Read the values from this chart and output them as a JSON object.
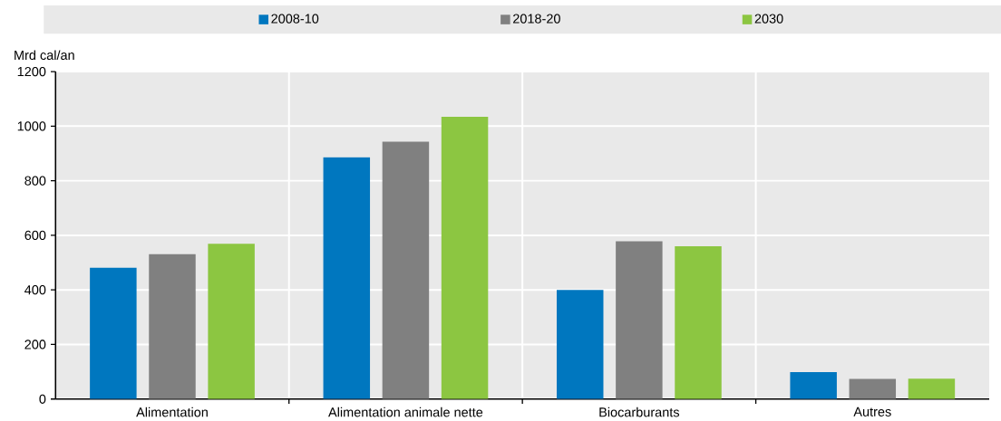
{
  "chart_data": {
    "type": "bar",
    "ylabel": "Mrd cal/an",
    "categories": [
      "Alimentation",
      "Alimentation animale nette",
      "Biocarburants",
      "Autres"
    ],
    "series": [
      {
        "name": "2008-10",
        "color": "#0077bf",
        "values": [
          481,
          886,
          400,
          99
        ]
      },
      {
        "name": "2018-20",
        "color": "#808080",
        "values": [
          531,
          943,
          578,
          74
        ]
      },
      {
        "name": "2030",
        "color": "#8cc641",
        "values": [
          569,
          1034,
          560,
          75
        ]
      }
    ],
    "ylim": [
      0,
      1200
    ],
    "yticks": [
      0,
      200,
      400,
      600,
      800,
      1000,
      1200
    ],
    "grid": true,
    "legend": "top"
  }
}
